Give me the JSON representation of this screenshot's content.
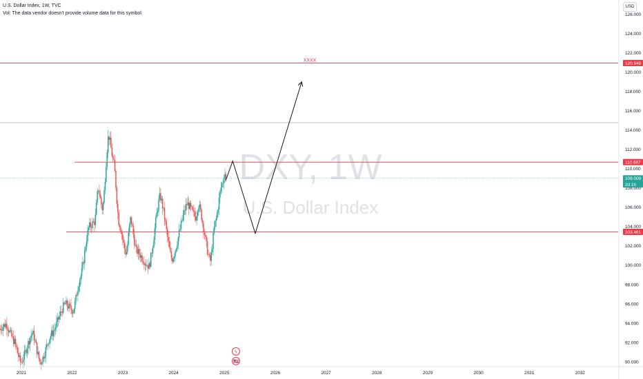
{
  "header": {
    "title": "U.S. Dollar Index, 1W, TVC",
    "volume_note": "Vol: The data vendor doesn't provide volume data for this symbol.",
    "currency": "USD"
  },
  "watermark": {
    "symbol": "DXY, 1W",
    "name": "U.S. Dollar Index"
  },
  "colors": {
    "up": "#26a69a",
    "down": "#ef5350",
    "level_line": "#f23645",
    "text": "#131722",
    "grid_text": "#131722",
    "watermark": "#d1d4dc"
  },
  "chart_data": {
    "type": "candlestick",
    "x_axis": {
      "type": "date",
      "range": [
        "2020-08-01",
        "2032-10-01"
      ],
      "tick_labels": [
        "2021",
        "2022",
        "2023",
        "2024",
        "2025",
        "2026",
        "2027",
        "2028",
        "2029",
        "2030",
        "2031",
        "2032"
      ]
    },
    "y_axis": {
      "range": [
        89.5,
        127.2
      ],
      "tick_labels": [
        "90.000",
        "92.000",
        "94.000",
        "96.000",
        "98.000",
        "100.000",
        "102.000",
        "104.000",
        "106.000",
        "108.000",
        "110.000",
        "112.000",
        "114.000",
        "116.000",
        "118.000",
        "120.000",
        "122.000",
        "124.000",
        "126.000"
      ]
    },
    "anchors": [
      {
        "date": "2020-08-01",
        "value": 93.4
      },
      {
        "date": "2020-09-20",
        "value": 93.9
      },
      {
        "date": "2020-11-15",
        "value": 92.2
      },
      {
        "date": "2021-01-05",
        "value": 89.9
      },
      {
        "date": "2021-03-30",
        "value": 93.0
      },
      {
        "date": "2021-05-25",
        "value": 89.9
      },
      {
        "date": "2021-08-15",
        "value": 92.9
      },
      {
        "date": "2021-11-20",
        "value": 96.0
      },
      {
        "date": "2022-01-15",
        "value": 95.3
      },
      {
        "date": "2022-03-10",
        "value": 98.8
      },
      {
        "date": "2022-05-10",
        "value": 104.0
      },
      {
        "date": "2022-06-20",
        "value": 104.5
      },
      {
        "date": "2022-07-15",
        "value": 108.0
      },
      {
        "date": "2022-08-15",
        "value": 105.8
      },
      {
        "date": "2022-09-27",
        "value": 113.5
      },
      {
        "date": "2022-11-05",
        "value": 110.5
      },
      {
        "date": "2022-12-10",
        "value": 104.5
      },
      {
        "date": "2023-02-01",
        "value": 101.2
      },
      {
        "date": "2023-03-05",
        "value": 104.8
      },
      {
        "date": "2023-04-15",
        "value": 101.5
      },
      {
        "date": "2023-07-15",
        "value": 99.9
      },
      {
        "date": "2023-10-03",
        "value": 107.2
      },
      {
        "date": "2023-12-27",
        "value": 100.6
      },
      {
        "date": "2024-04-15",
        "value": 106.4
      },
      {
        "date": "2024-06-15",
        "value": 105.0
      },
      {
        "date": "2024-07-05",
        "value": 106.3
      },
      {
        "date": "2024-09-27",
        "value": 100.4
      },
      {
        "date": "2024-11-01",
        "value": 104.3
      },
      {
        "date": "2024-12-20",
        "value": 108.4
      },
      {
        "date": "2025-01-13",
        "value": 109.6
      }
    ],
    "last_price": 109.009,
    "last_price_label": "109.009",
    "countdown_label": "2d 1h",
    "levels": [
      {
        "value": 120.948,
        "label": "120.948",
        "start": "2020-08-01",
        "text": "XXXX"
      },
      {
        "value": 110.687,
        "label": "110.687",
        "start": "2022-01-20"
      },
      {
        "value": 103.461,
        "label": "103.461",
        "start": "2021-11-20"
      }
    ],
    "hline_gray": 114.78,
    "projection_path": [
      {
        "date": "2025-01-10",
        "value": 108.8
      },
      {
        "date": "2025-03-01",
        "value": 110.8
      },
      {
        "date": "2025-08-10",
        "value": 103.3
      },
      {
        "date": "2026-07-10",
        "value": 119.0
      }
    ],
    "event_icons": [
      "ϟ",
      "🇺🇸"
    ]
  }
}
